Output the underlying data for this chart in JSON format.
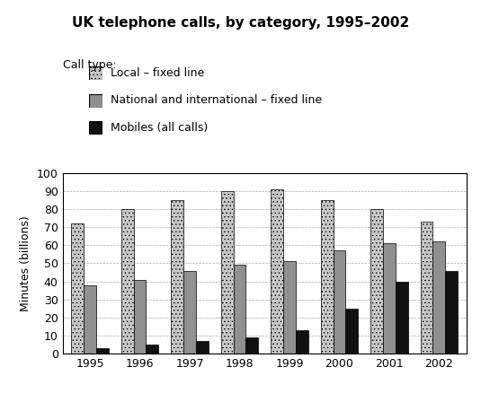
{
  "title": "UK telephone calls, by category, 1995–2002",
  "ylabel": "Minutes (billions)",
  "years": [
    1995,
    1996,
    1997,
    1998,
    1999,
    2000,
    2001,
    2002
  ],
  "local_fixed": [
    72,
    80,
    85,
    90,
    91,
    85,
    80,
    73
  ],
  "national_fixed": [
    38,
    41,
    46,
    49,
    51,
    57,
    61,
    62
  ],
  "mobiles": [
    3,
    5,
    7,
    9,
    13,
    25,
    40,
    46
  ],
  "ylim": [
    0,
    100
  ],
  "yticks": [
    0,
    10,
    20,
    30,
    40,
    50,
    60,
    70,
    80,
    90,
    100
  ],
  "legend_labels": [
    "Local – fixed line",
    "National and international – fixed line",
    "Mobiles (all calls)"
  ],
  "legend_title": "Call type:",
  "bar_width": 0.25,
  "color_local": "#c8c8c8",
  "color_national": "#909090",
  "color_mobiles": "#111111"
}
